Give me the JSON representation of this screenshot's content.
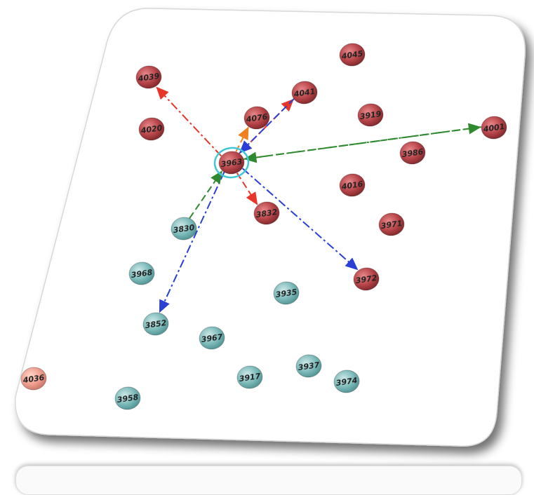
{
  "colors": {
    "red_node": "#b8464a",
    "teal_node": "#7fbcbc",
    "salmon_node": "#f0a090",
    "edge_red": "#e8352a",
    "edge_green": "#2f8a2f",
    "edge_blue": "#2a3fd6",
    "edge_orange": "#f08020",
    "highlight_ring": "#40c8d8"
  },
  "nodes": [
    {
      "id": "n4039",
      "label": "4039",
      "color": "red"
    },
    {
      "id": "n4045",
      "label": "4045",
      "color": "red"
    },
    {
      "id": "n4041",
      "label": "4041",
      "color": "red"
    },
    {
      "id": "n4020",
      "label": "4020",
      "color": "red"
    },
    {
      "id": "n4076",
      "label": "4076",
      "color": "red"
    },
    {
      "id": "n3919",
      "label": "3919",
      "color": "red"
    },
    {
      "id": "n4001",
      "label": "4001",
      "color": "red"
    },
    {
      "id": "n3986",
      "label": "3986",
      "color": "red"
    },
    {
      "id": "n3963",
      "label": "3963",
      "color": "red",
      "highlighted": true
    },
    {
      "id": "n4016",
      "label": "4016",
      "color": "red"
    },
    {
      "id": "n3832",
      "label": "3832",
      "color": "red"
    },
    {
      "id": "n3971",
      "label": "3971",
      "color": "red"
    },
    {
      "id": "n3830",
      "label": "3830",
      "color": "teal"
    },
    {
      "id": "n3968",
      "label": "3968",
      "color": "teal"
    },
    {
      "id": "n3972",
      "label": "3972",
      "color": "red"
    },
    {
      "id": "n3935",
      "label": "3935",
      "color": "teal"
    },
    {
      "id": "n3852",
      "label": "3852",
      "color": "teal"
    },
    {
      "id": "n3967",
      "label": "3967",
      "color": "teal"
    },
    {
      "id": "n4036",
      "label": "4036",
      "color": "salmon"
    },
    {
      "id": "n3937",
      "label": "3937",
      "color": "teal"
    },
    {
      "id": "n3917",
      "label": "3917",
      "color": "teal"
    },
    {
      "id": "n3974",
      "label": "3974",
      "color": "teal"
    },
    {
      "id": "n3958",
      "label": "3958",
      "color": "teal"
    }
  ],
  "edges": [
    {
      "from": "n3963",
      "to": "n4039",
      "color": "red",
      "style": "dashdot"
    },
    {
      "from": "n3963",
      "to": "n4041",
      "color": "red",
      "style": "dashdot"
    },
    {
      "from": "n3963",
      "to": "n4076",
      "color": "orange",
      "style": "dash"
    },
    {
      "from": "n3963",
      "to": "n4001",
      "color": "green",
      "style": "dashdot"
    },
    {
      "from": "n4001",
      "to": "n3963",
      "color": "green",
      "style": "dash"
    },
    {
      "from": "n3963",
      "to": "n3832",
      "color": "red",
      "style": "dash"
    },
    {
      "from": "n3963",
      "to": "n3972",
      "color": "blue",
      "style": "dashdot"
    },
    {
      "from": "n3963",
      "to": "n3852",
      "color": "blue",
      "style": "dashdot"
    },
    {
      "from": "n4041",
      "to": "n3963",
      "color": "blue",
      "style": "dash"
    },
    {
      "from": "n3830",
      "to": "n3963",
      "color": "green",
      "style": "dash"
    }
  ]
}
